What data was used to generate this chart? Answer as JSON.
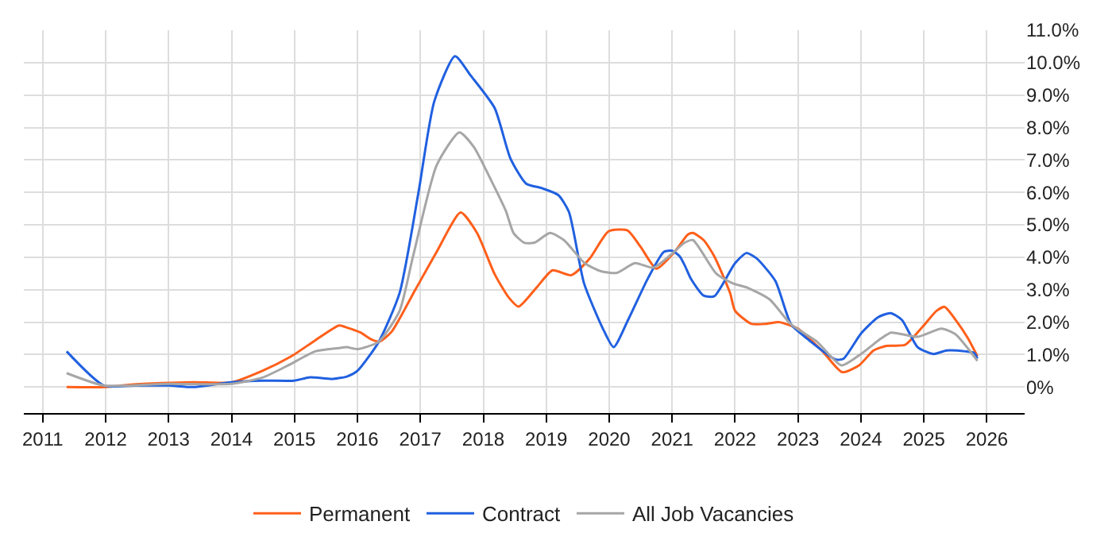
{
  "chart_data": {
    "type": "line",
    "xlim": [
      2010.7,
      2026.6
    ],
    "xticks": [
      2011,
      2012,
      2013,
      2014,
      2015,
      2016,
      2017,
      2018,
      2019,
      2020,
      2021,
      2022,
      2023,
      2024,
      2025,
      2026
    ],
    "ylim": [
      -0.8,
      11
    ],
    "yticks": [
      {
        "value": 0,
        "label": "0%"
      },
      {
        "value": 1,
        "label": "1.0%"
      },
      {
        "value": 2,
        "label": "2.0%"
      },
      {
        "value": 3,
        "label": "3.0%"
      },
      {
        "value": 4,
        "label": "4.0%"
      },
      {
        "value": 5,
        "label": "5.0%"
      },
      {
        "value": 6,
        "label": "6.0%"
      },
      {
        "value": 7,
        "label": "7.0%"
      },
      {
        "value": 8,
        "label": "8.0%"
      },
      {
        "value": 9,
        "label": "9.0%"
      },
      {
        "value": 10,
        "label": "10.0%"
      },
      {
        "value": 11,
        "label": "11.0%"
      }
    ],
    "grid": true,
    "legend": "bottom",
    "marker": "none",
    "line_style": "solid",
    "series": [
      {
        "name": "Permanent",
        "color": "#ff5f1a",
        "x": [
          2011.38,
          2012.0,
          2012.44,
          2013.4,
          2013.99,
          2014.49,
          2014.95,
          2015.33,
          2015.71,
          2015.84,
          2016.05,
          2016.21,
          2016.35,
          2016.54,
          2016.92,
          2017.26,
          2017.64,
          2017.9,
          2018.18,
          2018.4,
          2018.56,
          2018.86,
          2019.1,
          2019.4,
          2019.69,
          2019.99,
          2020.29,
          2020.5,
          2020.75,
          2021.04,
          2021.25,
          2021.33,
          2021.5,
          2021.67,
          2021.92,
          2022.0,
          2022.26,
          2022.5,
          2022.7,
          2023.0,
          2023.39,
          2023.7,
          2023.97,
          2024.2,
          2024.4,
          2024.7,
          2024.98,
          2025.2,
          2025.33,
          2025.53,
          2025.7,
          2025.85
        ],
        "values": [
          0.0,
          0.0,
          0.08,
          0.15,
          0.14,
          0.5,
          0.95,
          1.44,
          1.9,
          1.83,
          1.68,
          1.48,
          1.4,
          1.7,
          3.0,
          4.17,
          5.38,
          4.75,
          3.48,
          2.77,
          2.48,
          3.1,
          3.6,
          3.45,
          3.96,
          4.8,
          4.83,
          4.32,
          3.65,
          4.17,
          4.7,
          4.75,
          4.53,
          4.03,
          2.9,
          2.35,
          1.95,
          1.95,
          2.0,
          1.8,
          1.1,
          0.46,
          0.67,
          1.13,
          1.27,
          1.3,
          1.86,
          2.35,
          2.47,
          2.0,
          1.5,
          0.95
        ]
      },
      {
        "name": "Contract",
        "color": "#2060e0",
        "x": [
          2011.38,
          2011.97,
          2012.5,
          2013.0,
          2013.4,
          2014.0,
          2014.5,
          2015.0,
          2015.25,
          2015.6,
          2015.84,
          2016.0,
          2016.34,
          2016.67,
          2016.97,
          2017.22,
          2017.55,
          2017.8,
          2018.18,
          2018.43,
          2018.68,
          2018.93,
          2019.19,
          2019.36,
          2019.6,
          2019.9,
          2020.07,
          2020.3,
          2020.62,
          2020.87,
          2021.0,
          2021.12,
          2021.2,
          2021.3,
          2021.5,
          2021.67,
          2022.0,
          2022.18,
          2022.34,
          2022.64,
          2022.89,
          2023.14,
          2023.6,
          2023.72,
          2024.0,
          2024.27,
          2024.47,
          2024.65,
          2024.9,
          2025.15,
          2025.36,
          2025.66,
          2025.8,
          2025.85
        ],
        "values": [
          1.1,
          0.05,
          0.05,
          0.05,
          0.0,
          0.15,
          0.2,
          0.2,
          0.3,
          0.25,
          0.33,
          0.5,
          1.4,
          2.9,
          6.0,
          8.8,
          10.2,
          9.6,
          8.6,
          7.05,
          6.27,
          6.13,
          5.92,
          5.4,
          3.2,
          1.8,
          1.23,
          2.07,
          3.37,
          4.17,
          4.2,
          4.03,
          3.75,
          3.33,
          2.82,
          2.8,
          3.82,
          4.13,
          3.97,
          3.27,
          1.93,
          1.5,
          0.85,
          0.87,
          1.65,
          2.15,
          2.28,
          2.07,
          1.23,
          1.02,
          1.13,
          1.1,
          1.05,
          0.88
        ]
      },
      {
        "name": "All Job Vacancies",
        "color": "#a6a6a6",
        "x": [
          2011.38,
          2011.97,
          2013.0,
          2014.0,
          2014.5,
          2014.9,
          2015.33,
          2015.7,
          2015.83,
          2016.0,
          2016.34,
          2016.67,
          2016.88,
          2017.26,
          2017.62,
          2017.85,
          2018.15,
          2018.36,
          2018.48,
          2018.65,
          2018.81,
          2019.06,
          2019.28,
          2019.61,
          2019.87,
          2020.12,
          2020.41,
          2020.7,
          2020.95,
          2021.2,
          2021.33,
          2021.7,
          2021.96,
          2022.2,
          2022.55,
          2022.89,
          2023.3,
          2023.69,
          2024.0,
          2024.32,
          2024.48,
          2024.9,
          2025.28,
          2025.5,
          2025.85
        ],
        "values": [
          0.43,
          0.05,
          0.1,
          0.1,
          0.3,
          0.67,
          1.1,
          1.2,
          1.23,
          1.17,
          1.4,
          2.35,
          4.0,
          6.84,
          7.85,
          7.4,
          6.27,
          5.42,
          4.75,
          4.45,
          4.45,
          4.75,
          4.53,
          3.82,
          3.57,
          3.52,
          3.82,
          3.68,
          4.03,
          4.45,
          4.53,
          3.5,
          3.2,
          3.06,
          2.7,
          1.93,
          1.4,
          0.67,
          1.02,
          1.5,
          1.68,
          1.55,
          1.8,
          1.63,
          0.81
        ]
      }
    ]
  }
}
